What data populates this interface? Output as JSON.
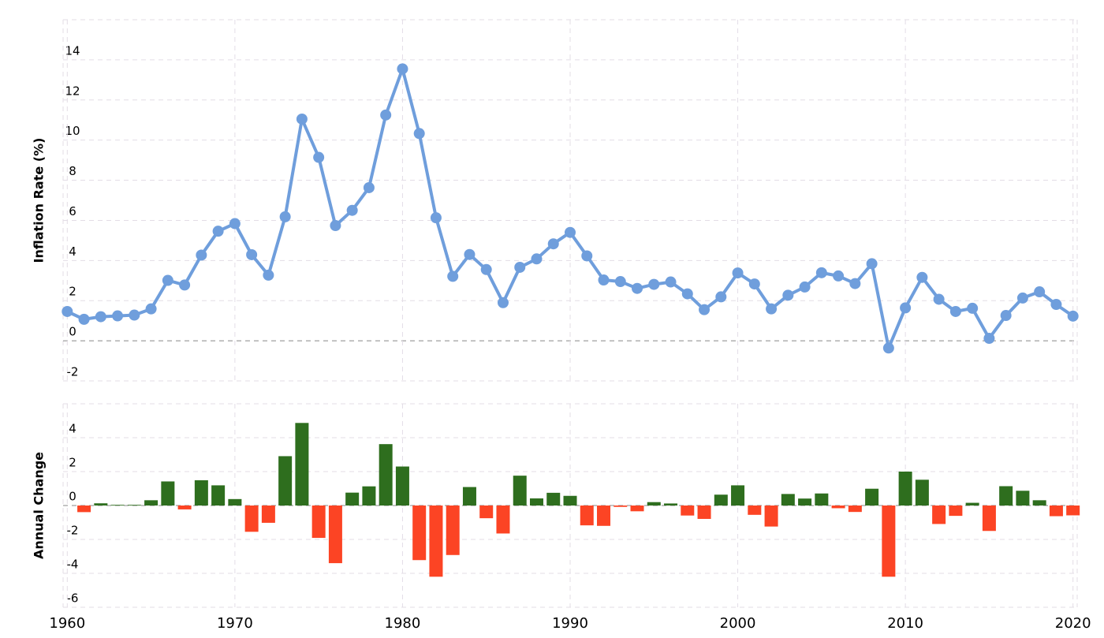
{
  "chart_data": [
    {
      "type": "line",
      "y_label": "Inflation Rate (%)",
      "x": [
        1960,
        1961,
        1962,
        1963,
        1964,
        1965,
        1966,
        1967,
        1968,
        1969,
        1970,
        1971,
        1972,
        1973,
        1974,
        1975,
        1976,
        1977,
        1978,
        1979,
        1980,
        1981,
        1982,
        1983,
        1984,
        1985,
        1986,
        1987,
        1988,
        1989,
        1990,
        1991,
        1992,
        1993,
        1994,
        1995,
        1996,
        1997,
        1998,
        1999,
        2000,
        2001,
        2002,
        2003,
        2004,
        2005,
        2006,
        2007,
        2008,
        2009,
        2010,
        2011,
        2012,
        2013,
        2014,
        2015,
        2016,
        2017,
        2018,
        2019,
        2020
      ],
      "series": [
        {
          "color": "#6f9edc",
          "values": [
            1.46,
            1.07,
            1.2,
            1.24,
            1.28,
            1.59,
            3.01,
            2.78,
            4.27,
            5.46,
            5.84,
            4.29,
            3.27,
            6.18,
            11.05,
            9.14,
            5.74,
            6.5,
            7.63,
            11.25,
            13.55,
            10.33,
            6.13,
            3.21,
            4.3,
            3.55,
            1.9,
            3.66,
            4.08,
            4.83,
            5.4,
            4.23,
            3.03,
            2.95,
            2.61,
            2.81,
            2.93,
            2.34,
            1.55,
            2.19,
            3.38,
            2.83,
            1.59,
            2.27,
            2.68,
            3.39,
            3.23,
            2.85,
            3.84,
            -0.36,
            1.64,
            3.16,
            2.07,
            1.46,
            1.62,
            0.12,
            1.26,
            2.13,
            2.44,
            1.81,
            1.23
          ]
        }
      ],
      "xlim": [
        1959.75,
        2020.25
      ],
      "xticks": [
        1960,
        1970,
        1980,
        1990,
        2000,
        2010,
        2020
      ],
      "ylim": [
        -2,
        16
      ],
      "yticks": [
        -2,
        0,
        2,
        4,
        6,
        8,
        10,
        12,
        14
      ],
      "grid": true
    },
    {
      "type": "bar",
      "y_label": "Annual Change",
      "x": [
        1961,
        1962,
        1963,
        1964,
        1965,
        1966,
        1967,
        1968,
        1969,
        1970,
        1971,
        1972,
        1973,
        1974,
        1975,
        1976,
        1977,
        1978,
        1979,
        1980,
        1981,
        1982,
        1983,
        1984,
        1985,
        1986,
        1987,
        1988,
        1989,
        1990,
        1991,
        1992,
        1993,
        1994,
        1995,
        1996,
        1997,
        1998,
        1999,
        2000,
        2001,
        2002,
        2003,
        2004,
        2005,
        2006,
        2007,
        2008,
        2009,
        2010,
        2011,
        2012,
        2013,
        2014,
        2015,
        2016,
        2017,
        2018,
        2019,
        2020
      ],
      "values": [
        -0.39,
        0.13,
        0.04,
        0.04,
        0.31,
        1.42,
        -0.23,
        1.49,
        1.19,
        0.38,
        -1.55,
        -1.02,
        2.91,
        4.87,
        -1.91,
        -3.4,
        0.76,
        1.13,
        3.62,
        2.3,
        -3.22,
        -4.2,
        -2.92,
        1.09,
        -0.75,
        -1.65,
        1.76,
        0.42,
        0.75,
        0.57,
        -1.17,
        -1.2,
        -0.08,
        -0.34,
        0.2,
        0.12,
        -0.59,
        -0.79,
        0.64,
        1.19,
        -0.55,
        -1.24,
        0.68,
        0.41,
        0.71,
        -0.16,
        -0.38,
        0.99,
        -4.2,
        2.0,
        1.52,
        -1.09,
        -0.61,
        0.16,
        -1.5,
        1.14,
        0.87,
        0.31,
        -0.63,
        -0.58
      ],
      "positive_color": "#2e6e1e",
      "negative_color": "#fc4424",
      "xlim": [
        1959.75,
        2020.25
      ],
      "xticks": [
        1960,
        1970,
        1980,
        1990,
        2000,
        2010,
        2020
      ],
      "ylim": [
        -6,
        6
      ],
      "yticks": [
        -6,
        -4,
        -2,
        0,
        2,
        4
      ],
      "grid": true
    }
  ]
}
